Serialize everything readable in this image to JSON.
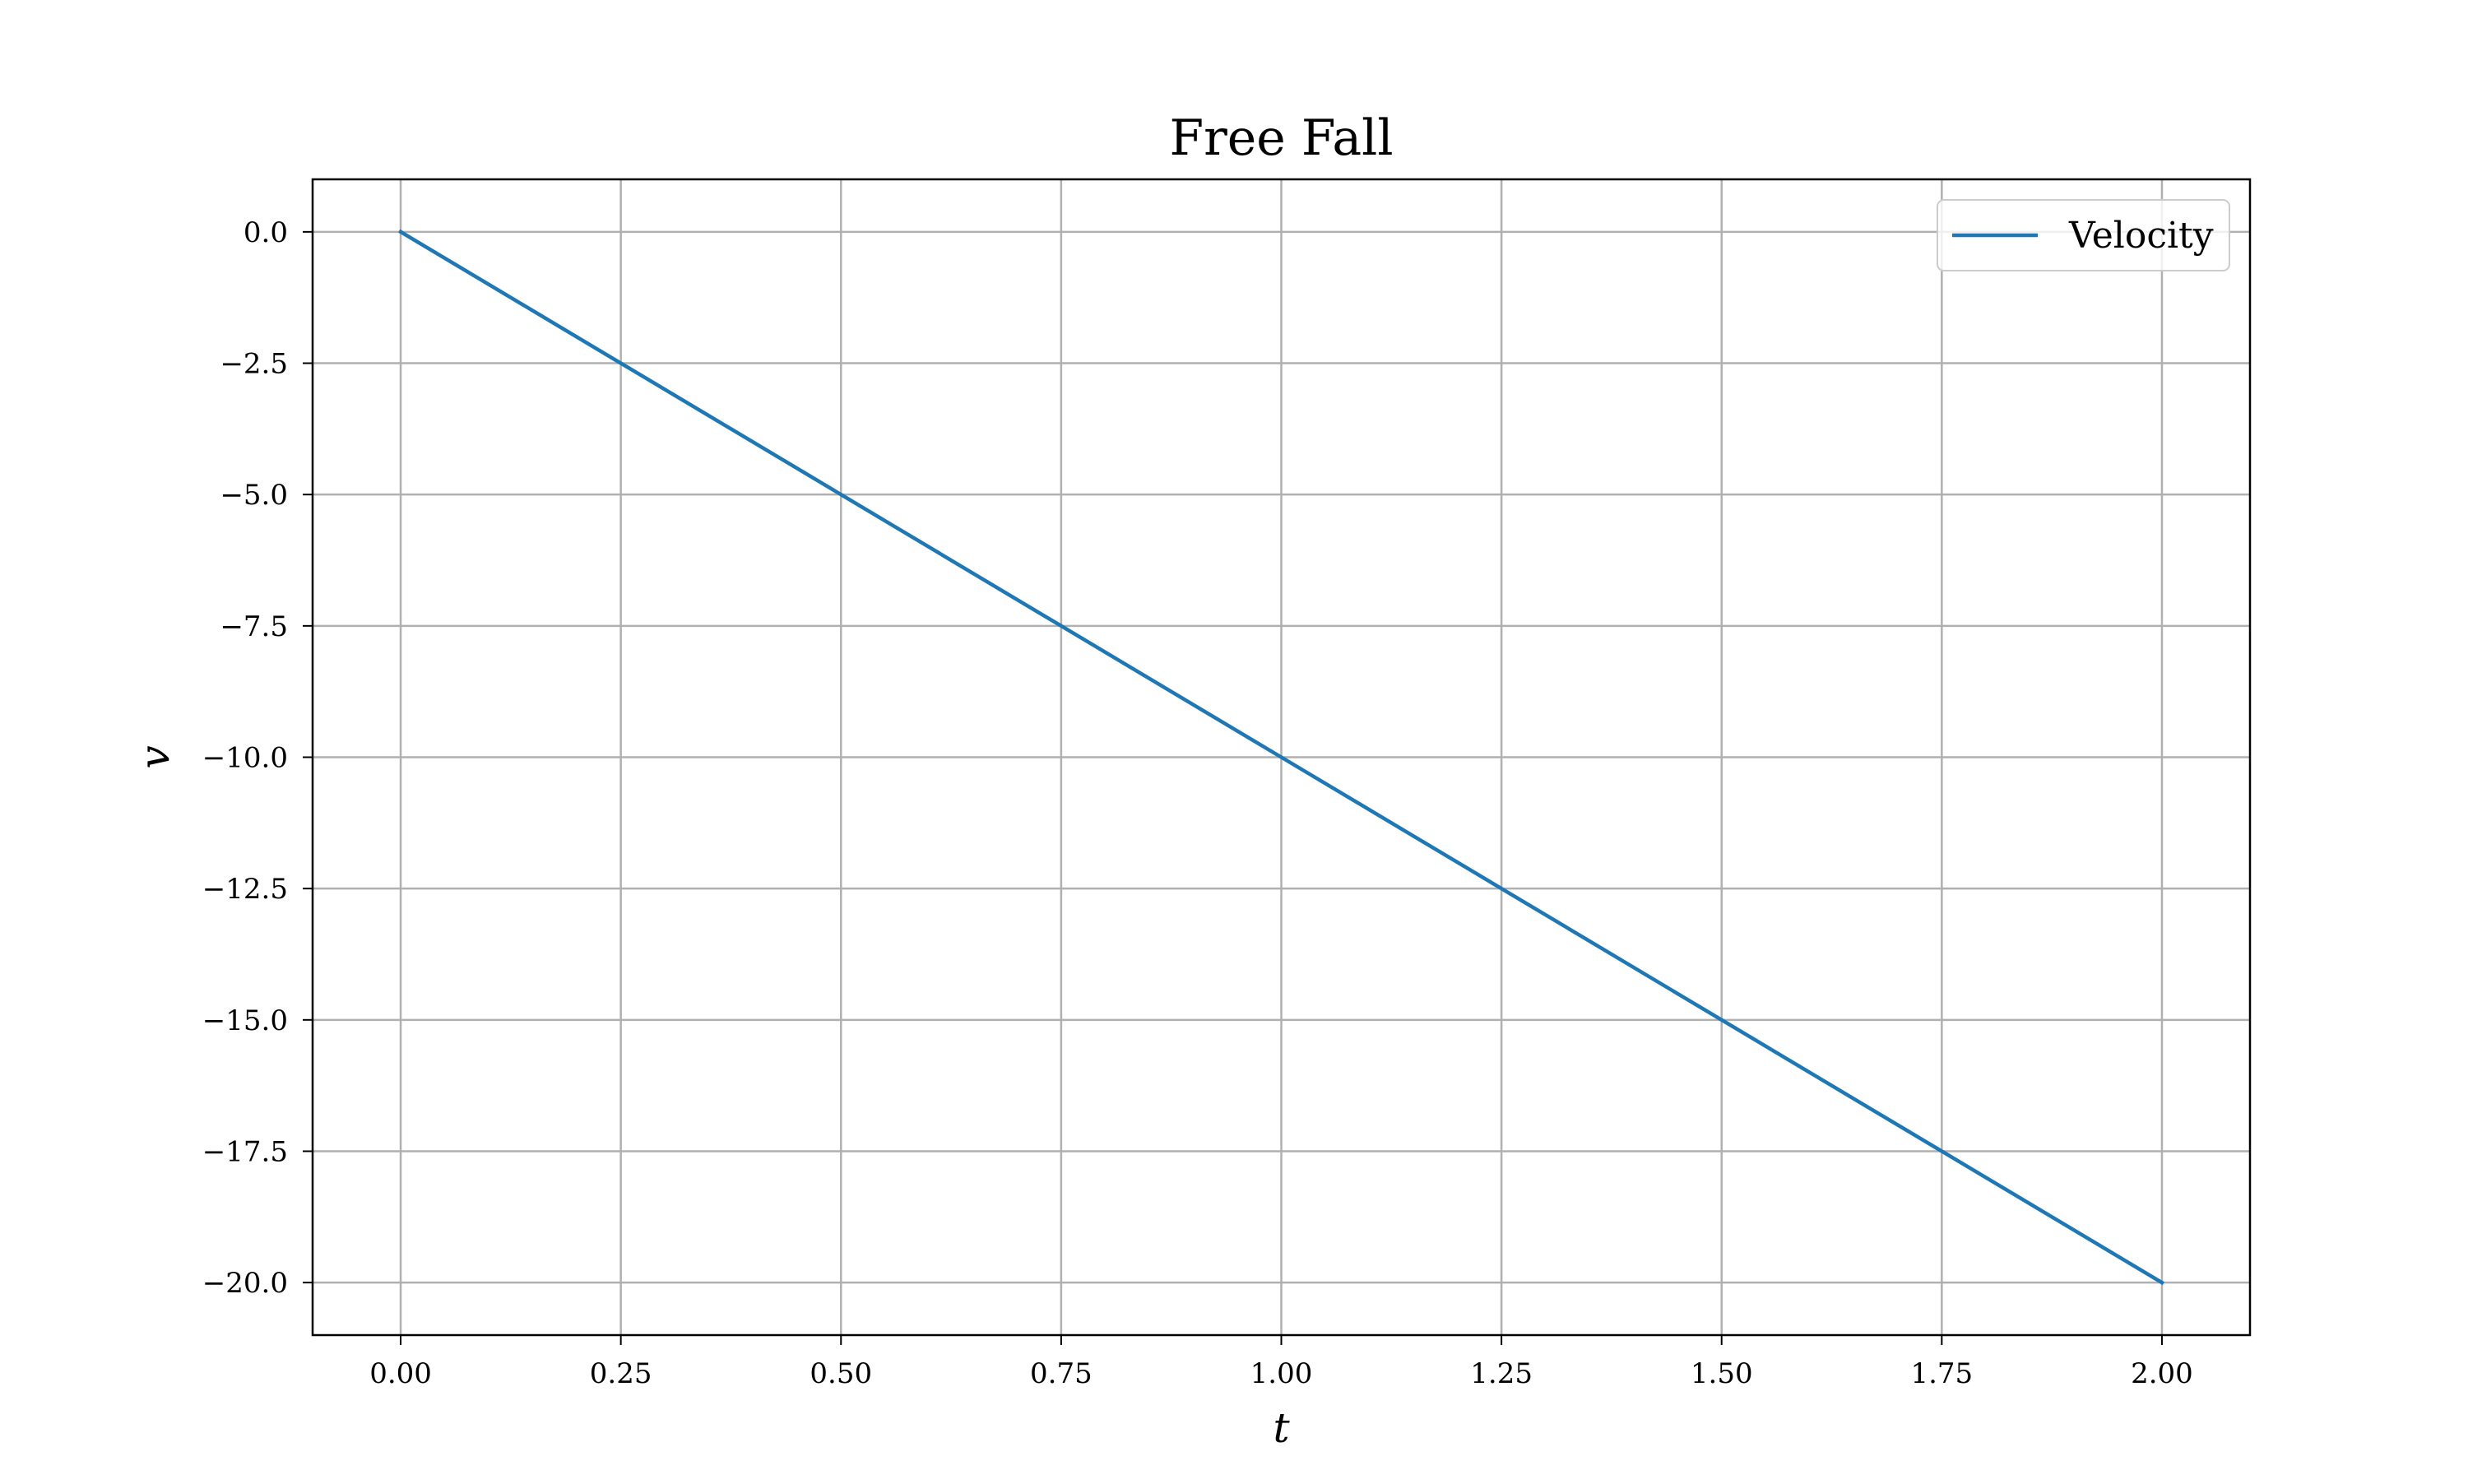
{
  "chart_data": {
    "type": "line",
    "title": "Free Fall",
    "xlabel": "t",
    "ylabel": "v",
    "xlim": [
      -0.1,
      2.1
    ],
    "ylim": [
      -21.0,
      1.0
    ],
    "xticks": [
      0.0,
      0.25,
      0.5,
      0.75,
      1.0,
      1.25,
      1.5,
      1.75,
      2.0
    ],
    "xtick_labels": [
      "0.00",
      "0.25",
      "0.50",
      "0.75",
      "1.00",
      "1.25",
      "1.50",
      "1.75",
      "2.00"
    ],
    "yticks": [
      0.0,
      -2.5,
      -5.0,
      -7.5,
      -10.0,
      -12.5,
      -15.0,
      -17.5,
      -20.0
    ],
    "ytick_labels": [
      "0.0",
      "−2.5",
      "−5.0",
      "−7.5",
      "−10.0",
      "−12.5",
      "−15.0",
      "−17.5",
      "−20.0"
    ],
    "grid": true,
    "legend_position": "top-right",
    "series": [
      {
        "name": "Velocity",
        "color": "#1f77b4",
        "x": [
          0.0,
          0.25,
          0.5,
          0.75,
          1.0,
          1.25,
          1.5,
          1.75,
          2.0
        ],
        "y": [
          0.0,
          -2.5,
          -5.0,
          -7.5,
          -10.0,
          -12.5,
          -15.0,
          -17.5,
          -20.0
        ]
      }
    ]
  }
}
